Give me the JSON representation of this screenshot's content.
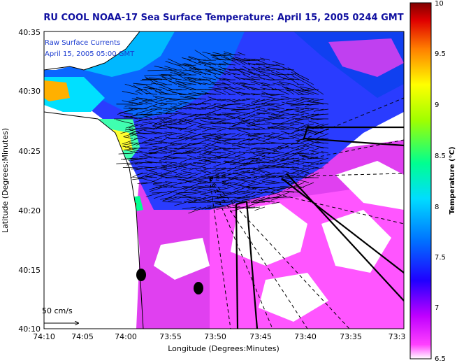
{
  "title": "RU COOL  NOAA-17  Sea Surface Temperature:  April 15, 2005 0244 GMT",
  "overlay": {
    "line1": "Raw Surface Currents",
    "line2": "April 15, 2005 05:00 GMT",
    "scale_label": "50 cm/s"
  },
  "axes": {
    "xlabel": "Longitude (Degrees:Minutes)",
    "ylabel": "Latitude (Degrees:Minutes)",
    "xticks": [
      "74:10",
      "74:05",
      "74:00",
      "73:55",
      "73:50",
      "73:45",
      "73:40",
      "73:35",
      "73:3"
    ],
    "yticks": [
      "40:35",
      "40:30",
      "40:25",
      "40:20",
      "40:15",
      "40:10"
    ]
  },
  "colorbar": {
    "label": "Temperature (°C)",
    "ticks": [
      "10",
      "9.5",
      "9",
      "8.5",
      "8",
      "7.5",
      "7",
      "6.5"
    ],
    "min": 6.5,
    "max": 10
  }
}
